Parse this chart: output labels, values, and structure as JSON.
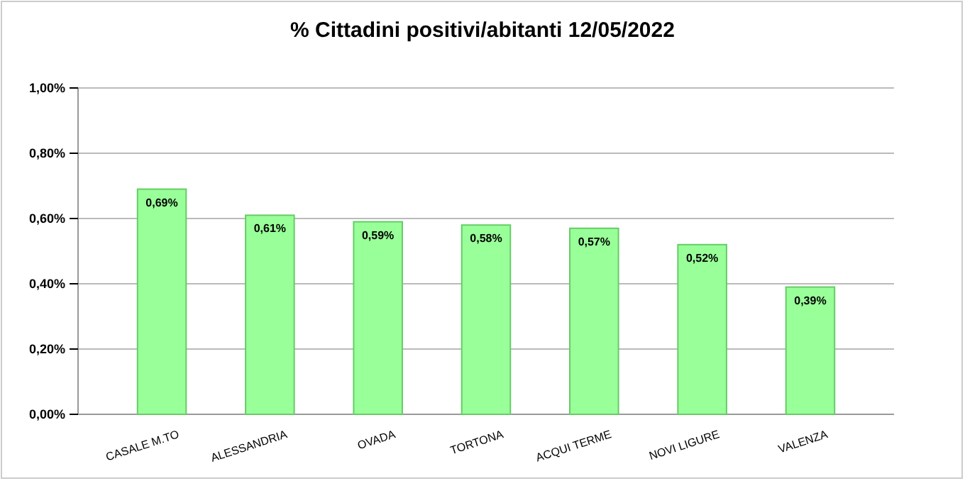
{
  "chart_data": {
    "type": "bar",
    "title": "% Cittadini positivi/abitanti 12/05/2022",
    "categories": [
      "CASALE M.TO",
      "ALESSANDRIA",
      "OVADA",
      "TORTONA",
      "ACQUI TERME",
      "NOVI LIGURE",
      "VALENZA"
    ],
    "values": [
      0.69,
      0.61,
      0.59,
      0.58,
      0.57,
      0.52,
      0.39
    ],
    "value_labels": [
      "0,69%",
      "0,61%",
      "0,59%",
      "0,58%",
      "0,57%",
      "0,52%",
      "0,39%"
    ],
    "color": "#99ff99",
    "ylim": [
      0,
      1
    ],
    "yticks": [
      {
        "value": 0,
        "label": "0,00%"
      },
      {
        "value": 0.2,
        "label": "0,20%"
      },
      {
        "value": 0.4,
        "label": "0,40%"
      },
      {
        "value": 0.6,
        "label": "0,60%"
      },
      {
        "value": 0.8,
        "label": "0,80%"
      },
      {
        "value": 1,
        "label": "1,00%"
      }
    ],
    "grid": "y"
  }
}
